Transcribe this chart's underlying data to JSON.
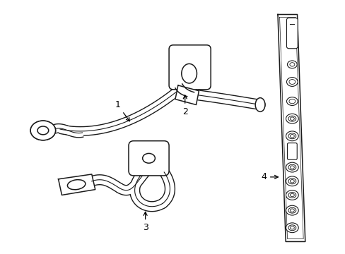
{
  "background_color": "#ffffff",
  "line_color": "#1a1a1a",
  "text_color": "#000000",
  "figsize": [
    4.89,
    3.6
  ],
  "dpi": 100
}
